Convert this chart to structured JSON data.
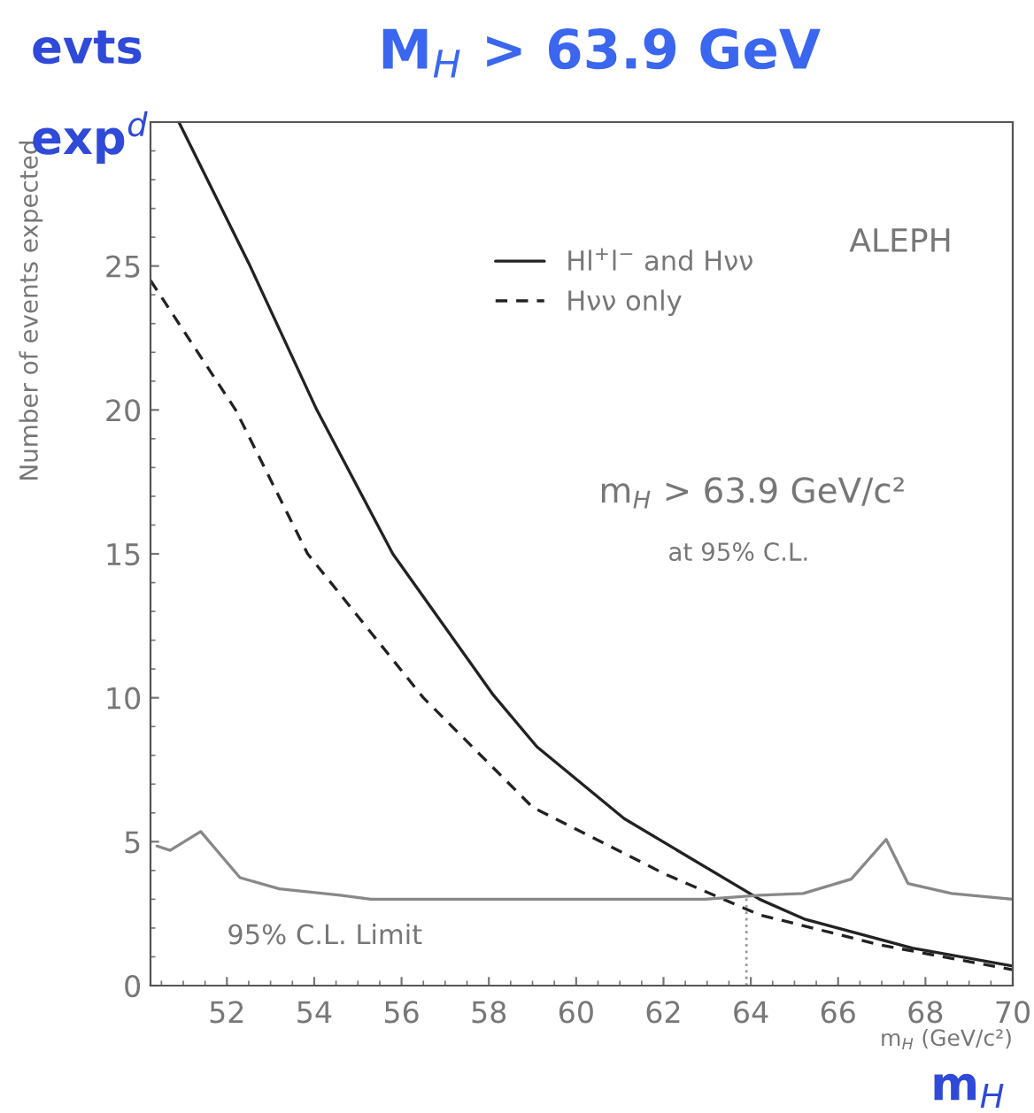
{
  "chart_data": {
    "type": "line",
    "title": "M$_{H}$ > 63.9 GeV",
    "xlabel": "m$_{H}$ (GeV/c²)",
    "ylabel": "Number of events expected",
    "xlim": [
      50.25,
      70
    ],
    "xticks": [
      52,
      54,
      56,
      58,
      60,
      62,
      64,
      66,
      68,
      70
    ],
    "ylim": [
      0,
      30
    ],
    "yticks": [
      0,
      5,
      10,
      15,
      20,
      25,
      {
        "value": 30,
        "label": null
      }
    ],
    "legend": "top",
    "series": [
      {
        "name": "Hl$^{+}$l$^{−}$ and Hνν",
        "color": "#222222",
        "line_style": "solid",
        "x": [
          50.9,
          52.5,
          54.06,
          55.8,
          58.1,
          59.1,
          61.1,
          64.2,
          65.25,
          67.7,
          70
        ],
        "values": [
          30,
          25.1,
          20.0,
          15.0,
          10.1,
          8.3,
          5.8,
          3.0,
          2.3,
          1.3,
          0.68
        ]
      },
      {
        "name": "Hνν only",
        "color": "#222222",
        "line_style": "dashed",
        "x": [
          50.25,
          52.2,
          53.85,
          56.5,
          59.0,
          62.0,
          64.2,
          67.0,
          70
        ],
        "values": [
          24.5,
          20.0,
          15.0,
          10.0,
          6.2,
          3.9,
          2.46,
          1.4,
          0.55
        ]
      },
      {
        "name": "95% C.L. Limit",
        "color": "#888888",
        "line_style": "solid",
        "x": [
          50.4,
          50.7,
          51.4,
          52.3,
          53.2,
          54.6,
          55.3,
          62.95,
          64.2,
          65.2,
          66.3,
          67.1,
          67.6,
          68.6,
          70
        ],
        "values": [
          4.85,
          4.7,
          5.35,
          3.75,
          3.36,
          3.14,
          3.0,
          3.0,
          3.14,
          3.2,
          3.7,
          5.08,
          3.55,
          3.2,
          3.0
        ]
      }
    ],
    "ref_lines": [
      {
        "axis": "x",
        "value": 63.9,
        "color": "#999999",
        "line_style": "dotted"
      }
    ],
    "annotations": [
      "ALEPH",
      "m$_{H}$ > 63.9 GeV/c²",
      "at 95% C.L.",
      "evts",
      "exp$^{d}$",
      "m$_{H}$"
    ]
  }
}
